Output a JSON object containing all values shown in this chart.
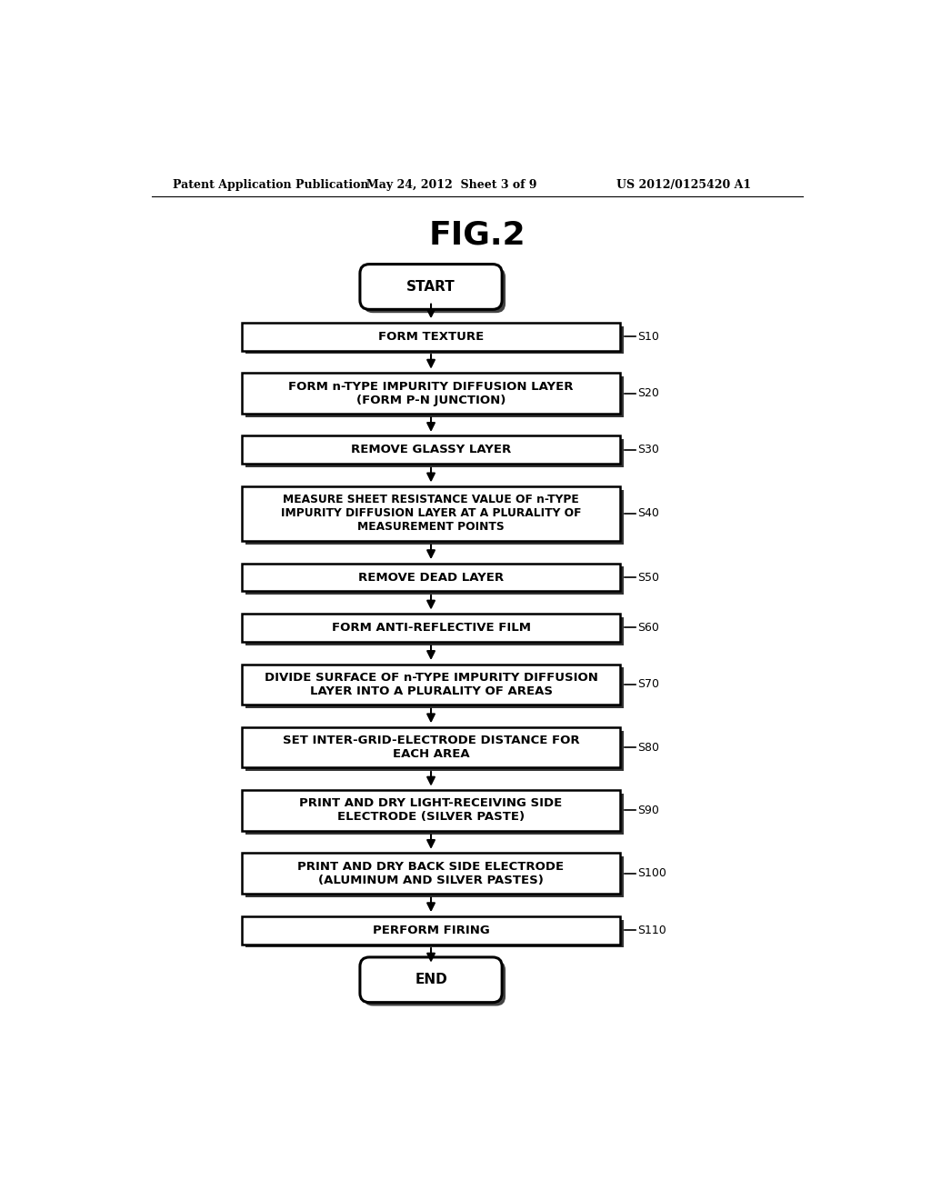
{
  "title": "FIG.2",
  "header_left": "Patent Application Publication",
  "header_center": "May 24, 2012  Sheet 3 of 9",
  "header_right": "US 2012/0125420 A1",
  "steps": [
    {
      "label": "START",
      "type": "stadium",
      "step_id": null
    },
    {
      "label": "FORM TEXTURE",
      "type": "rect",
      "step_id": "S10"
    },
    {
      "label": "FORM n-TYPE IMPURITY DIFFUSION LAYER\n(FORM P-N JUNCTION)",
      "type": "rect",
      "step_id": "S20"
    },
    {
      "label": "REMOVE GLASSY LAYER",
      "type": "rect",
      "step_id": "S30"
    },
    {
      "label": "MEASURE SHEET RESISTANCE VALUE OF n-TYPE\nIMPURITY DIFFUSION LAYER AT A PLURALITY OF\nMEASUREMENT POINTS",
      "type": "rect",
      "step_id": "S40"
    },
    {
      "label": "REMOVE DEAD LAYER",
      "type": "rect",
      "step_id": "S50"
    },
    {
      "label": "FORM ANTI-REFLECTIVE FILM",
      "type": "rect",
      "step_id": "S60"
    },
    {
      "label": "DIVIDE SURFACE OF n-TYPE IMPURITY DIFFUSION\nLAYER INTO A PLURALITY OF AREAS",
      "type": "rect",
      "step_id": "S70"
    },
    {
      "label": "SET INTER-GRID-ELECTRODE DISTANCE FOR\nEACH AREA",
      "type": "rect",
      "step_id": "S80"
    },
    {
      "label": "PRINT AND DRY LIGHT-RECEIVING SIDE\nELECTRODE (SILVER PASTE)",
      "type": "rect",
      "step_id": "S90"
    },
    {
      "label": "PRINT AND DRY BACK SIDE ELECTRODE\n(ALUMINUM AND SILVER PASTES)",
      "type": "rect",
      "step_id": "S100"
    },
    {
      "label": "PERFORM FIRING",
      "type": "rect",
      "step_id": "S110"
    },
    {
      "label": "END",
      "type": "stadium",
      "step_id": null
    }
  ],
  "bg_color": "#ffffff",
  "box_fill": "#ffffff",
  "box_edge": "#000000",
  "shadow_color": "#333333",
  "text_color": "#000000",
  "arrow_color": "#000000",
  "fig_width": 10.24,
  "fig_height": 13.2,
  "dpi": 100
}
